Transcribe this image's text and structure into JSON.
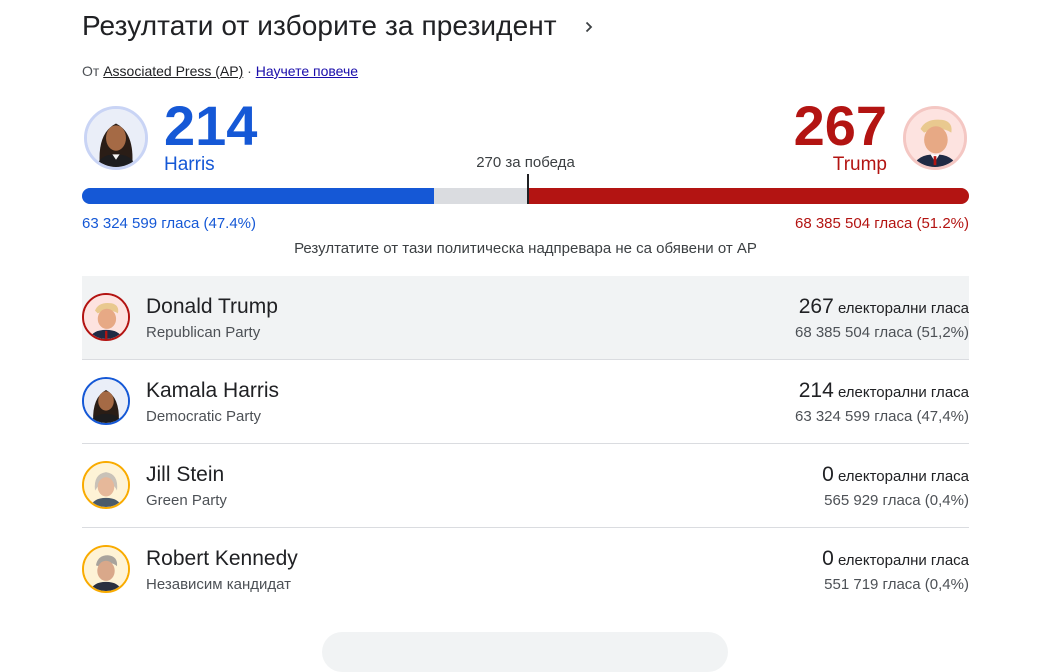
{
  "header": {
    "title": "Резултати от изборите за президент",
    "source_prefix": "От",
    "source_name": "Associated Press (AP)",
    "separator": "·",
    "learn_more": "Научете повече"
  },
  "summary": {
    "win_threshold_label": "270 за победа",
    "notice": "Резултатите от тази политическа надпревара не са обявени от AP",
    "left": {
      "electoral_votes": "214",
      "name": "Harris",
      "popular_votes": "63 324 599 гласа (47.4%)",
      "bar_fraction": 0.397,
      "color": "#1558d6"
    },
    "right": {
      "electoral_votes": "267",
      "name": "Trump",
      "popular_votes": "68 385 504 гласа (51.2%)",
      "bar_fraction": 0.496,
      "color": "#b31412"
    },
    "threshold_fraction": 0.502
  },
  "candidates": [
    {
      "name": "Donald Trump",
      "party": "Republican Party",
      "ev_number": "267",
      "ev_label": "електорални гласа",
      "votes": "68 385 504 гласа (51,2%)",
      "ring_color": "#b31412",
      "icon": "trump-avatar"
    },
    {
      "name": "Kamala Harris",
      "party": "Democratic Party",
      "ev_number": "214",
      "ev_label": "електорални гласа",
      "votes": "63 324 599 гласа (47,4%)",
      "ring_color": "#1558d6",
      "icon": "harris-avatar"
    },
    {
      "name": "Jill Stein",
      "party": "Green Party",
      "ev_number": "0",
      "ev_label": "електорални гласа",
      "votes": "565 929 гласа (0,4%)",
      "ring_color": "#f9ab00",
      "icon": "stein-avatar"
    },
    {
      "name": "Robert Kennedy",
      "party": "Независим кандидат",
      "ev_number": "0",
      "ev_label": "електорални гласа",
      "votes": "551 719 гласа (0,4%)",
      "ring_color": "#f9ab00",
      "icon": "kennedy-avatar"
    }
  ]
}
